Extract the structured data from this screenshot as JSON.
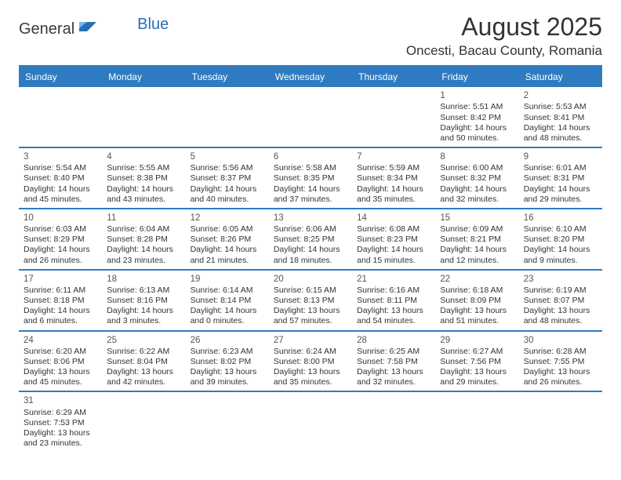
{
  "logo": {
    "part1": "General",
    "part2": "Blue"
  },
  "title": "August 2025",
  "location": "Oncesti, Bacau County, Romania",
  "colors": {
    "header_bg": "#2f7bc1",
    "header_text": "#ffffff",
    "border": "#2f7bc1",
    "text": "#333333",
    "logo_gray": "#3a3a3a",
    "logo_blue": "#2a6db5"
  },
  "weekdays": [
    "Sunday",
    "Monday",
    "Tuesday",
    "Wednesday",
    "Thursday",
    "Friday",
    "Saturday"
  ],
  "weeks": [
    [
      null,
      null,
      null,
      null,
      null,
      {
        "n": "1",
        "sr": "5:51 AM",
        "ss": "8:42 PM",
        "dl": "14 hours and 50 minutes."
      },
      {
        "n": "2",
        "sr": "5:53 AM",
        "ss": "8:41 PM",
        "dl": "14 hours and 48 minutes."
      }
    ],
    [
      {
        "n": "3",
        "sr": "5:54 AM",
        "ss": "8:40 PM",
        "dl": "14 hours and 45 minutes."
      },
      {
        "n": "4",
        "sr": "5:55 AM",
        "ss": "8:38 PM",
        "dl": "14 hours and 43 minutes."
      },
      {
        "n": "5",
        "sr": "5:56 AM",
        "ss": "8:37 PM",
        "dl": "14 hours and 40 minutes."
      },
      {
        "n": "6",
        "sr": "5:58 AM",
        "ss": "8:35 PM",
        "dl": "14 hours and 37 minutes."
      },
      {
        "n": "7",
        "sr": "5:59 AM",
        "ss": "8:34 PM",
        "dl": "14 hours and 35 minutes."
      },
      {
        "n": "8",
        "sr": "6:00 AM",
        "ss": "8:32 PM",
        "dl": "14 hours and 32 minutes."
      },
      {
        "n": "9",
        "sr": "6:01 AM",
        "ss": "8:31 PM",
        "dl": "14 hours and 29 minutes."
      }
    ],
    [
      {
        "n": "10",
        "sr": "6:03 AM",
        "ss": "8:29 PM",
        "dl": "14 hours and 26 minutes."
      },
      {
        "n": "11",
        "sr": "6:04 AM",
        "ss": "8:28 PM",
        "dl": "14 hours and 23 minutes."
      },
      {
        "n": "12",
        "sr": "6:05 AM",
        "ss": "8:26 PM",
        "dl": "14 hours and 21 minutes."
      },
      {
        "n": "13",
        "sr": "6:06 AM",
        "ss": "8:25 PM",
        "dl": "14 hours and 18 minutes."
      },
      {
        "n": "14",
        "sr": "6:08 AM",
        "ss": "8:23 PM",
        "dl": "14 hours and 15 minutes."
      },
      {
        "n": "15",
        "sr": "6:09 AM",
        "ss": "8:21 PM",
        "dl": "14 hours and 12 minutes."
      },
      {
        "n": "16",
        "sr": "6:10 AM",
        "ss": "8:20 PM",
        "dl": "14 hours and 9 minutes."
      }
    ],
    [
      {
        "n": "17",
        "sr": "6:11 AM",
        "ss": "8:18 PM",
        "dl": "14 hours and 6 minutes."
      },
      {
        "n": "18",
        "sr": "6:13 AM",
        "ss": "8:16 PM",
        "dl": "14 hours and 3 minutes."
      },
      {
        "n": "19",
        "sr": "6:14 AM",
        "ss": "8:14 PM",
        "dl": "14 hours and 0 minutes."
      },
      {
        "n": "20",
        "sr": "6:15 AM",
        "ss": "8:13 PM",
        "dl": "13 hours and 57 minutes."
      },
      {
        "n": "21",
        "sr": "6:16 AM",
        "ss": "8:11 PM",
        "dl": "13 hours and 54 minutes."
      },
      {
        "n": "22",
        "sr": "6:18 AM",
        "ss": "8:09 PM",
        "dl": "13 hours and 51 minutes."
      },
      {
        "n": "23",
        "sr": "6:19 AM",
        "ss": "8:07 PM",
        "dl": "13 hours and 48 minutes."
      }
    ],
    [
      {
        "n": "24",
        "sr": "6:20 AM",
        "ss": "8:06 PM",
        "dl": "13 hours and 45 minutes."
      },
      {
        "n": "25",
        "sr": "6:22 AM",
        "ss": "8:04 PM",
        "dl": "13 hours and 42 minutes."
      },
      {
        "n": "26",
        "sr": "6:23 AM",
        "ss": "8:02 PM",
        "dl": "13 hours and 39 minutes."
      },
      {
        "n": "27",
        "sr": "6:24 AM",
        "ss": "8:00 PM",
        "dl": "13 hours and 35 minutes."
      },
      {
        "n": "28",
        "sr": "6:25 AM",
        "ss": "7:58 PM",
        "dl": "13 hours and 32 minutes."
      },
      {
        "n": "29",
        "sr": "6:27 AM",
        "ss": "7:56 PM",
        "dl": "13 hours and 29 minutes."
      },
      {
        "n": "30",
        "sr": "6:28 AM",
        "ss": "7:55 PM",
        "dl": "13 hours and 26 minutes."
      }
    ],
    [
      {
        "n": "31",
        "sr": "6:29 AM",
        "ss": "7:53 PM",
        "dl": "13 hours and 23 minutes."
      },
      null,
      null,
      null,
      null,
      null,
      null
    ]
  ],
  "labels": {
    "sunrise": "Sunrise:",
    "sunset": "Sunset:",
    "daylight": "Daylight:"
  }
}
